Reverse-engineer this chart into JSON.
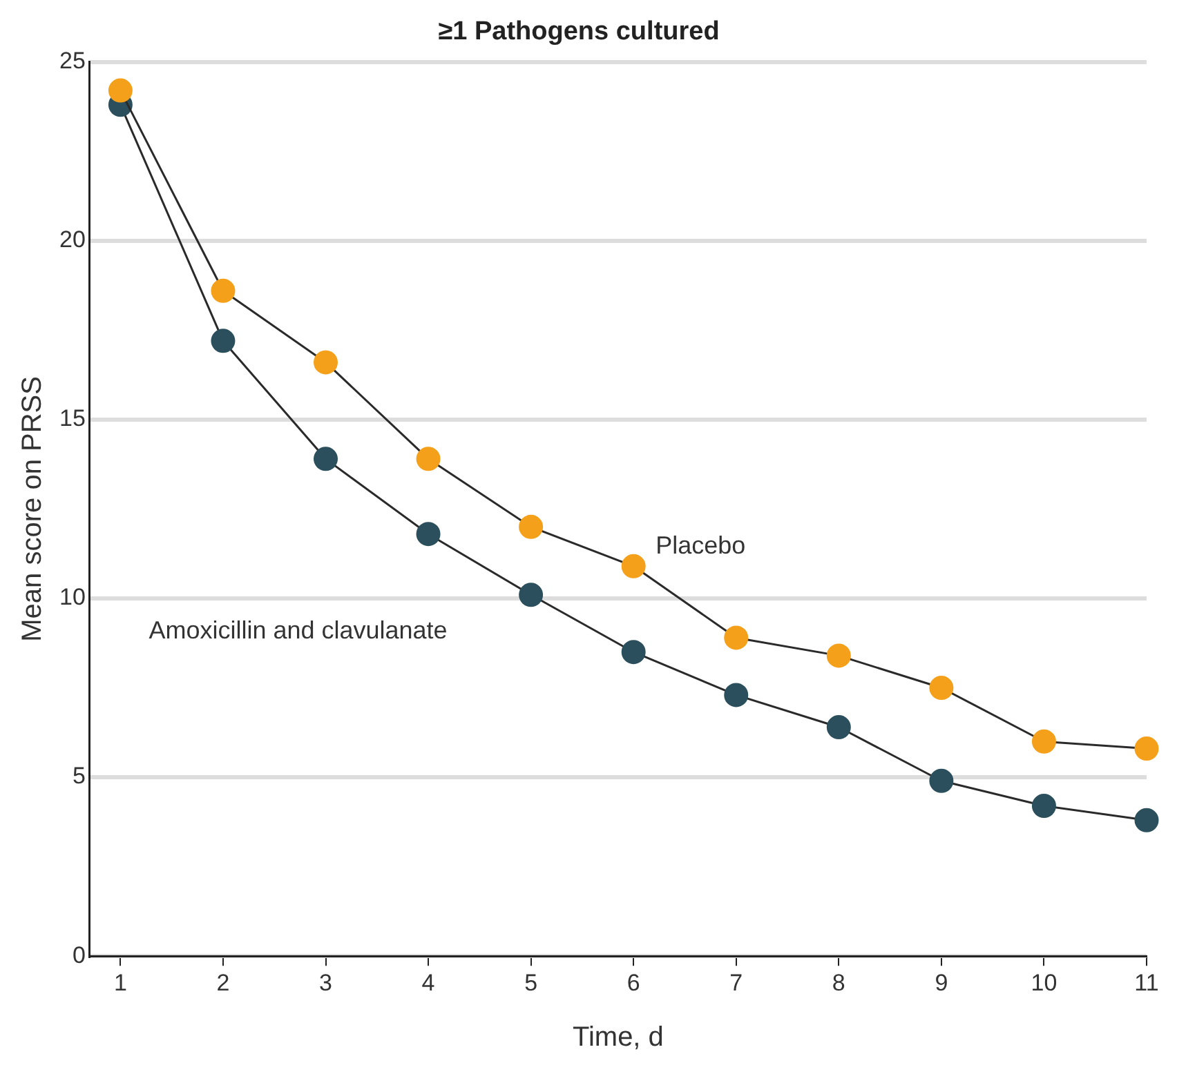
{
  "chart_data": {
    "type": "line",
    "title": "≥1 Pathogens cultured",
    "xlabel": "Time, d",
    "ylabel": "Mean score on PRSS",
    "x": [
      1,
      2,
      3,
      4,
      5,
      6,
      7,
      8,
      9,
      10,
      11
    ],
    "series": [
      {
        "name": "Placebo",
        "color": "#f5a01a",
        "values": [
          24.2,
          18.6,
          16.6,
          13.9,
          12.0,
          10.9,
          8.9,
          8.4,
          7.5,
          6.0,
          5.8
        ]
      },
      {
        "name": "Amoxicillin and clavulanate",
        "color": "#2b4f5c",
        "values": [
          23.8,
          17.2,
          13.9,
          11.8,
          10.1,
          8.5,
          7.3,
          6.4,
          4.9,
          4.2,
          3.8
        ]
      }
    ],
    "xlim": [
      0.7,
      11
    ],
    "xticks": [
      1,
      2,
      3,
      4,
      5,
      6,
      7,
      8,
      9,
      10,
      11
    ],
    "ylim": [
      0,
      25
    ],
    "yticks": [
      0,
      5,
      10,
      15,
      20,
      25
    ],
    "grid": "y",
    "legend": false,
    "marker": "circle",
    "line_style": "solid"
  }
}
